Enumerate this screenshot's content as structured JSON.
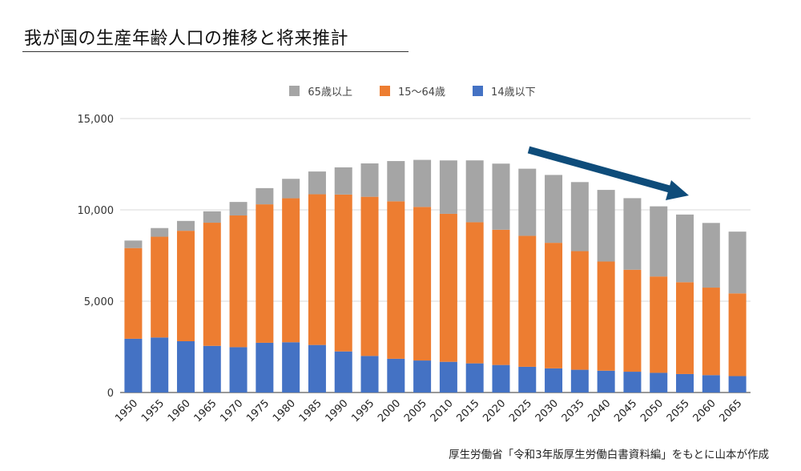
{
  "title": "我が国の生産年齢人口の推移と将来推計",
  "footer": "厚生労働省「令和3年版厚生労働白書資料編」をもとに山本が作成",
  "colors": {
    "age65plus": "#A5A5A5",
    "age15to64": "#ED7D31",
    "age0to14": "#4472C4",
    "arrow": "#0E4C7A",
    "grid": "#D9D9D9"
  },
  "chart_data": {
    "type": "bar",
    "stacked": true,
    "title": "",
    "xlabel": "",
    "ylabel": "",
    "ylim": [
      0,
      15000
    ],
    "yticks": [
      "0",
      "5,000",
      "10,000",
      "15,000"
    ],
    "ytick_values": [
      0,
      5000,
      10000,
      15000
    ],
    "grid": true,
    "legend_placement": "top",
    "annotation": "downward-trend-arrow",
    "categories": [
      "1950",
      "1955",
      "1960",
      "1965",
      "1970",
      "1975",
      "1980",
      "1985",
      "1990",
      "1995",
      "2000",
      "2005",
      "2010",
      "2015",
      "2020",
      "2025",
      "2030",
      "2035",
      "2040",
      "2045",
      "2050",
      "2055",
      "2060",
      "2065"
    ],
    "series": [
      {
        "name": "14歳以下",
        "color_key": "age0to14",
        "values": [
          2943,
          3012,
          2807,
          2553,
          2482,
          2722,
          2751,
          2603,
          2249,
          2001,
          1847,
          1752,
          1680,
          1595,
          1507,
          1407,
          1321,
          1246,
          1194,
          1138,
          1077,
          1012,
          951,
          898
        ]
      },
      {
        "name": "15〜64歳",
        "color_key": "age15to64",
        "values": [
          4966,
          5517,
          6047,
          6744,
          7212,
          7581,
          7883,
          8251,
          8590,
          8716,
          8622,
          8409,
          8103,
          7728,
          7406,
          7170,
          6875,
          6494,
          5978,
          5584,
          5275,
          5028,
          4793,
          4529
        ]
      },
      {
        "name": "65歳以上",
        "color_key": "age65plus",
        "values": [
          411,
          475,
          540,
          624,
          739,
          887,
          1065,
          1247,
          1489,
          1826,
          2204,
          2576,
          2925,
          3387,
          3619,
          3677,
          3716,
          3782,
          3921,
          3919,
          3841,
          3704,
          3540,
          3381
        ]
      }
    ],
    "legend_order": [
      2,
      1,
      0
    ]
  }
}
